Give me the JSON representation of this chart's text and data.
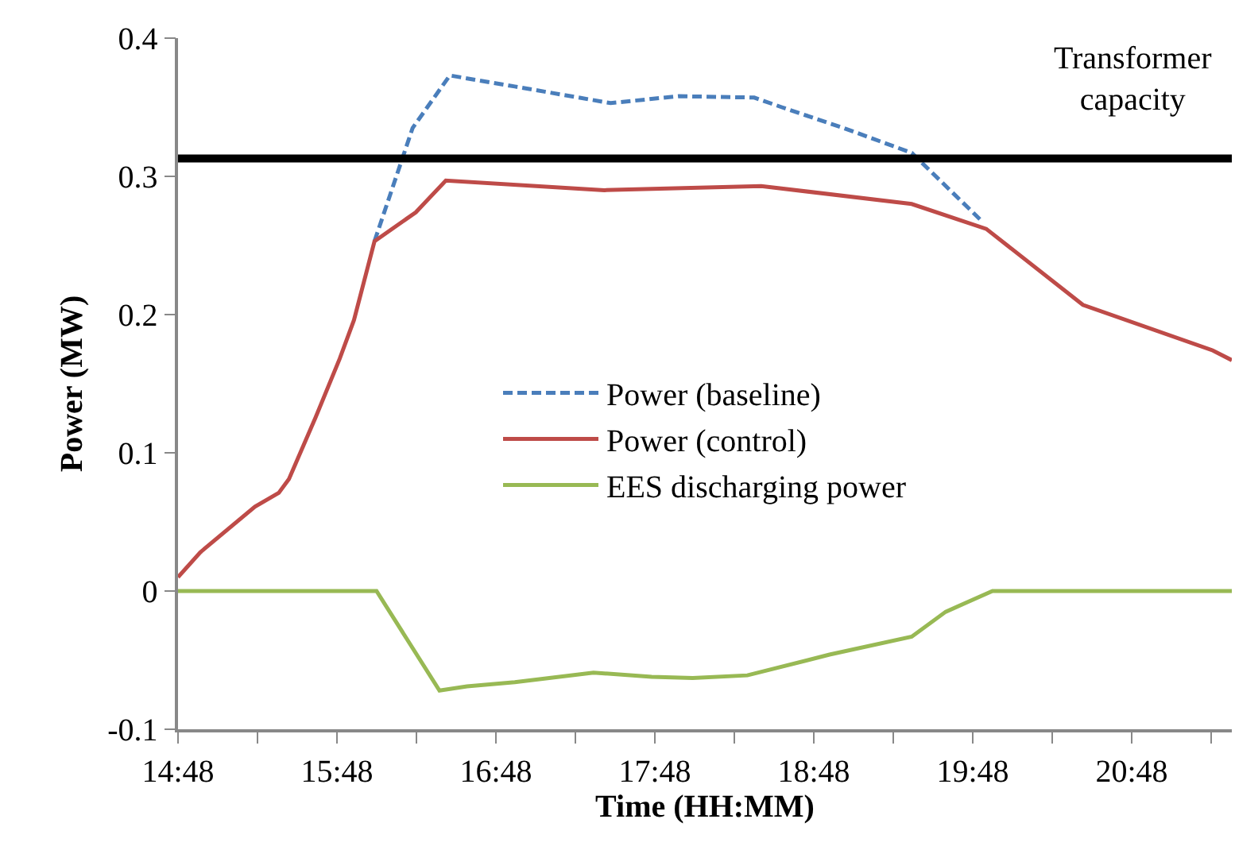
{
  "chart_data": {
    "type": "line",
    "xlabel": "Time (HH:MM)",
    "ylabel": "Power (MW)",
    "xlim": [
      14.8,
      21.43
    ],
    "xticks": [
      {
        "value": 14.8,
        "label": "14:48"
      },
      {
        "value": 15.3,
        "label": null
      },
      {
        "value": 15.8,
        "label": "15:48"
      },
      {
        "value": 16.3,
        "label": null
      },
      {
        "value": 16.8,
        "label": "16:48"
      },
      {
        "value": 17.3,
        "label": null
      },
      {
        "value": 17.8,
        "label": "17:48"
      },
      {
        "value": 18.3,
        "label": null
      },
      {
        "value": 18.8,
        "label": "18:48"
      },
      {
        "value": 19.3,
        "label": null
      },
      {
        "value": 19.8,
        "label": "19:48"
      },
      {
        "value": 20.3,
        "label": null
      },
      {
        "value": 20.8,
        "label": "20:48"
      },
      {
        "value": 21.3,
        "label": null
      }
    ],
    "ylim": [
      -0.1,
      0.4
    ],
    "yticks": [
      -0.1,
      0,
      0.1,
      0.2,
      0.3,
      0.4
    ],
    "legend": "center",
    "marker": "none",
    "ref_lines": [
      {
        "axis": "y",
        "value": 0.313,
        "label": "Transformer capacity",
        "color": "#000000"
      }
    ],
    "series": [
      {
        "name": "Power (baseline)",
        "color": "#4a7ebb",
        "line_style": "dashed",
        "x": [
          16.036,
          16.276,
          16.51,
          16.919,
          17.522,
          17.95,
          18.425,
          18.599,
          18.987,
          19.416,
          19.845
        ],
        "values": [
          0.253,
          0.335,
          0.373,
          0.365,
          0.353,
          0.358,
          0.357,
          0.35,
          0.335,
          0.317,
          0.269
        ]
      },
      {
        "name": "Power (control)",
        "color": "#be4b48",
        "line_style": "solid",
        "x": [
          14.8,
          14.94,
          15.284,
          15.434,
          15.498,
          15.667,
          15.817,
          15.907,
          16.036,
          16.296,
          16.485,
          17.482,
          18.469,
          19.416,
          19.885,
          20.493,
          21.311,
          21.43
        ],
        "values": [
          0.01,
          0.028,
          0.061,
          0.071,
          0.081,
          0.126,
          0.168,
          0.196,
          0.253,
          0.274,
          0.297,
          0.29,
          0.293,
          0.28,
          0.262,
          0.207,
          0.174,
          0.167
        ]
      },
      {
        "name": "EES discharging power",
        "color": "#98b954",
        "line_style": "solid",
        "x": [
          14.8,
          16.049,
          16.445,
          16.618,
          16.919,
          17.414,
          17.78,
          18.038,
          18.382,
          18.899,
          19.416,
          19.63,
          19.924,
          21.43
        ],
        "values": [
          0,
          0,
          -0.072,
          -0.069,
          -0.066,
          -0.059,
          -0.062,
          -0.063,
          -0.061,
          -0.046,
          -0.033,
          -0.015,
          0,
          0
        ]
      }
    ]
  }
}
